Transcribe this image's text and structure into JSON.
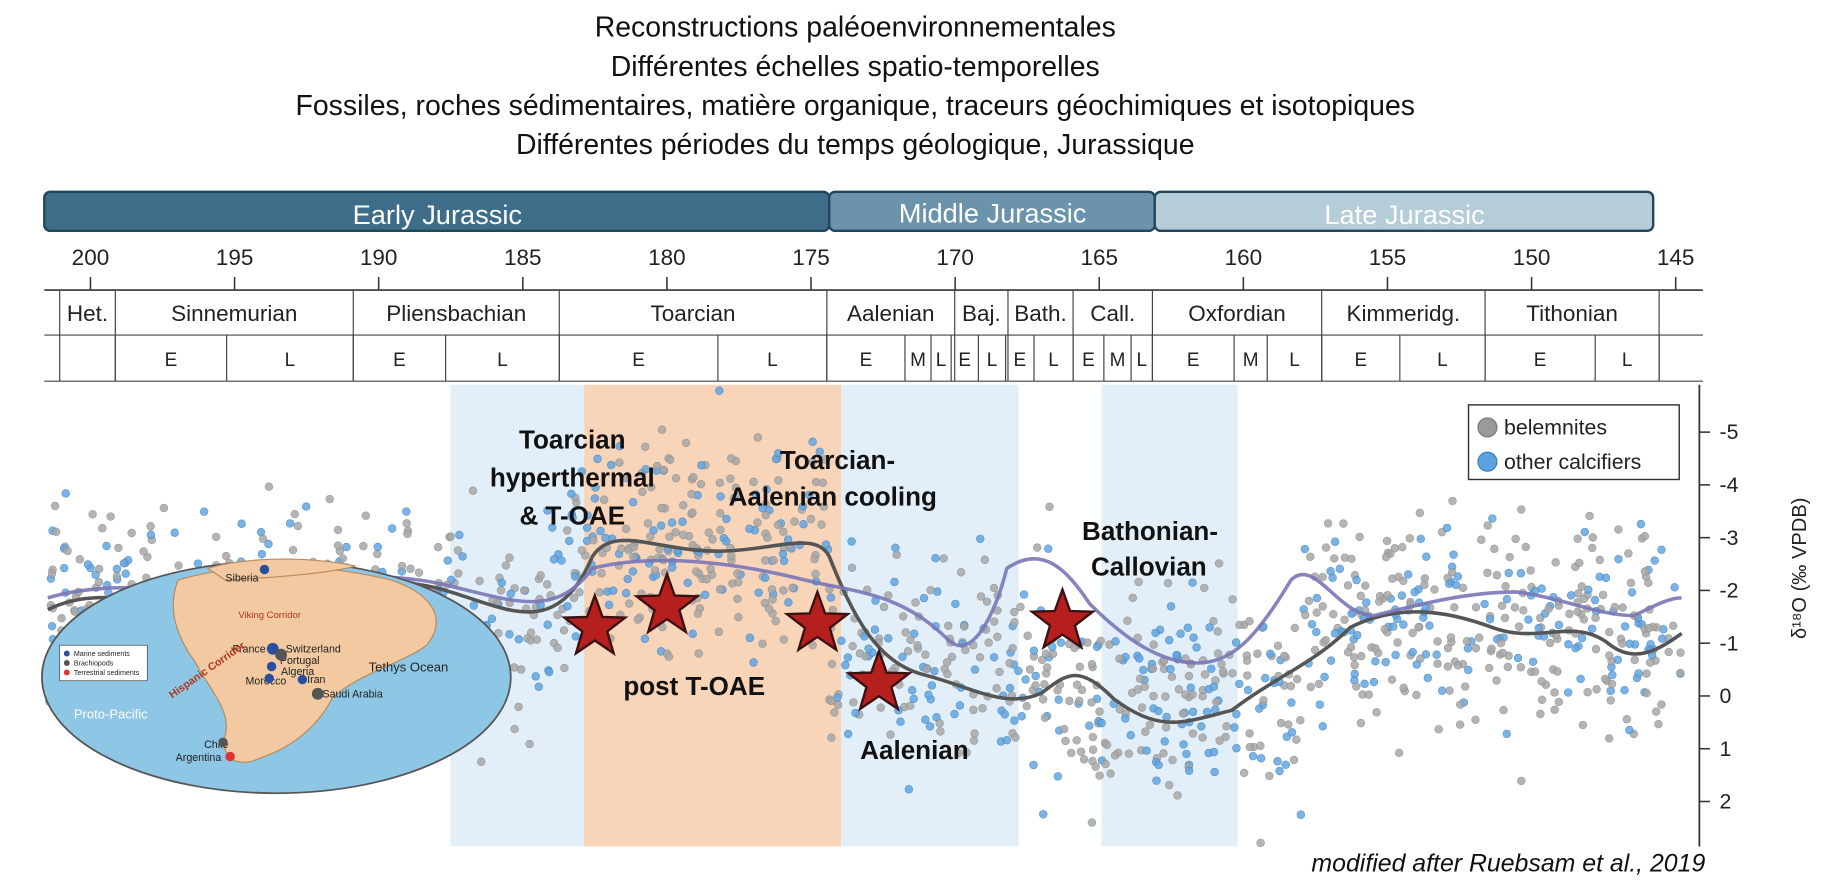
{
  "header": {
    "lines": [
      "Reconstructions paléoenvironnementales",
      "Différentes échelles spatio-temporelles",
      "Fossiles, roches sédimentaires, matière organique, traceurs géochimiques et isotopiques",
      "Différentes périodes du temps géologique, Jurassique"
    ]
  },
  "epochs": [
    "Early Jurassic",
    "Middle Jurassic",
    "Late Jurassic"
  ],
  "age_ticks": [
    200,
    195,
    190,
    185,
    180,
    175,
    170,
    165,
    160,
    155,
    150,
    145
  ],
  "stages": [
    "Het.",
    "Sinnemurian",
    "Pliensbachian",
    "Toarcian",
    "Aalenian",
    "Baj.",
    "Bath.",
    "Call.",
    "Oxfordian",
    "Kimmeridg.",
    "Tithonian"
  ],
  "substages": [
    "E",
    "L",
    "E",
    "L",
    "E",
    "L",
    "E",
    "M",
    "L",
    "E",
    "L",
    "E",
    "L",
    "E",
    "M",
    "L",
    "E",
    "M",
    "L",
    "E",
    "L",
    "E",
    "L"
  ],
  "d18o_axis": {
    "title": "δ¹⁸O (‰ VPDB)",
    "ticks": [
      -5,
      -4,
      -3,
      -2,
      -1,
      0,
      1,
      2
    ]
  },
  "legend": [
    "belemnites",
    "other calcifiers"
  ],
  "annotations": [
    "Toarcian",
    "hyperthermal",
    "& T-OAE",
    "Toarcian-",
    "Aalenian cooling",
    "Bathonian-",
    "Callovian",
    "post T-OAE",
    "Aalenian"
  ],
  "map": {
    "labels": [
      "Siberia",
      "France",
      "Switzerland",
      "Portugal",
      "Algeria",
      "Morocco",
      "Iran",
      "Saudi Arabia",
      "Tethys Ocean",
      "Proto-Pacific",
      "Hispanic Corridor",
      "Chile",
      "Argentina",
      "Viking Corridor"
    ],
    "legend": [
      "Marine sediments",
      "Brachiopods",
      "Terrestrial sediments"
    ]
  },
  "footer": "modified after Ruebsam et al., 2019"
}
